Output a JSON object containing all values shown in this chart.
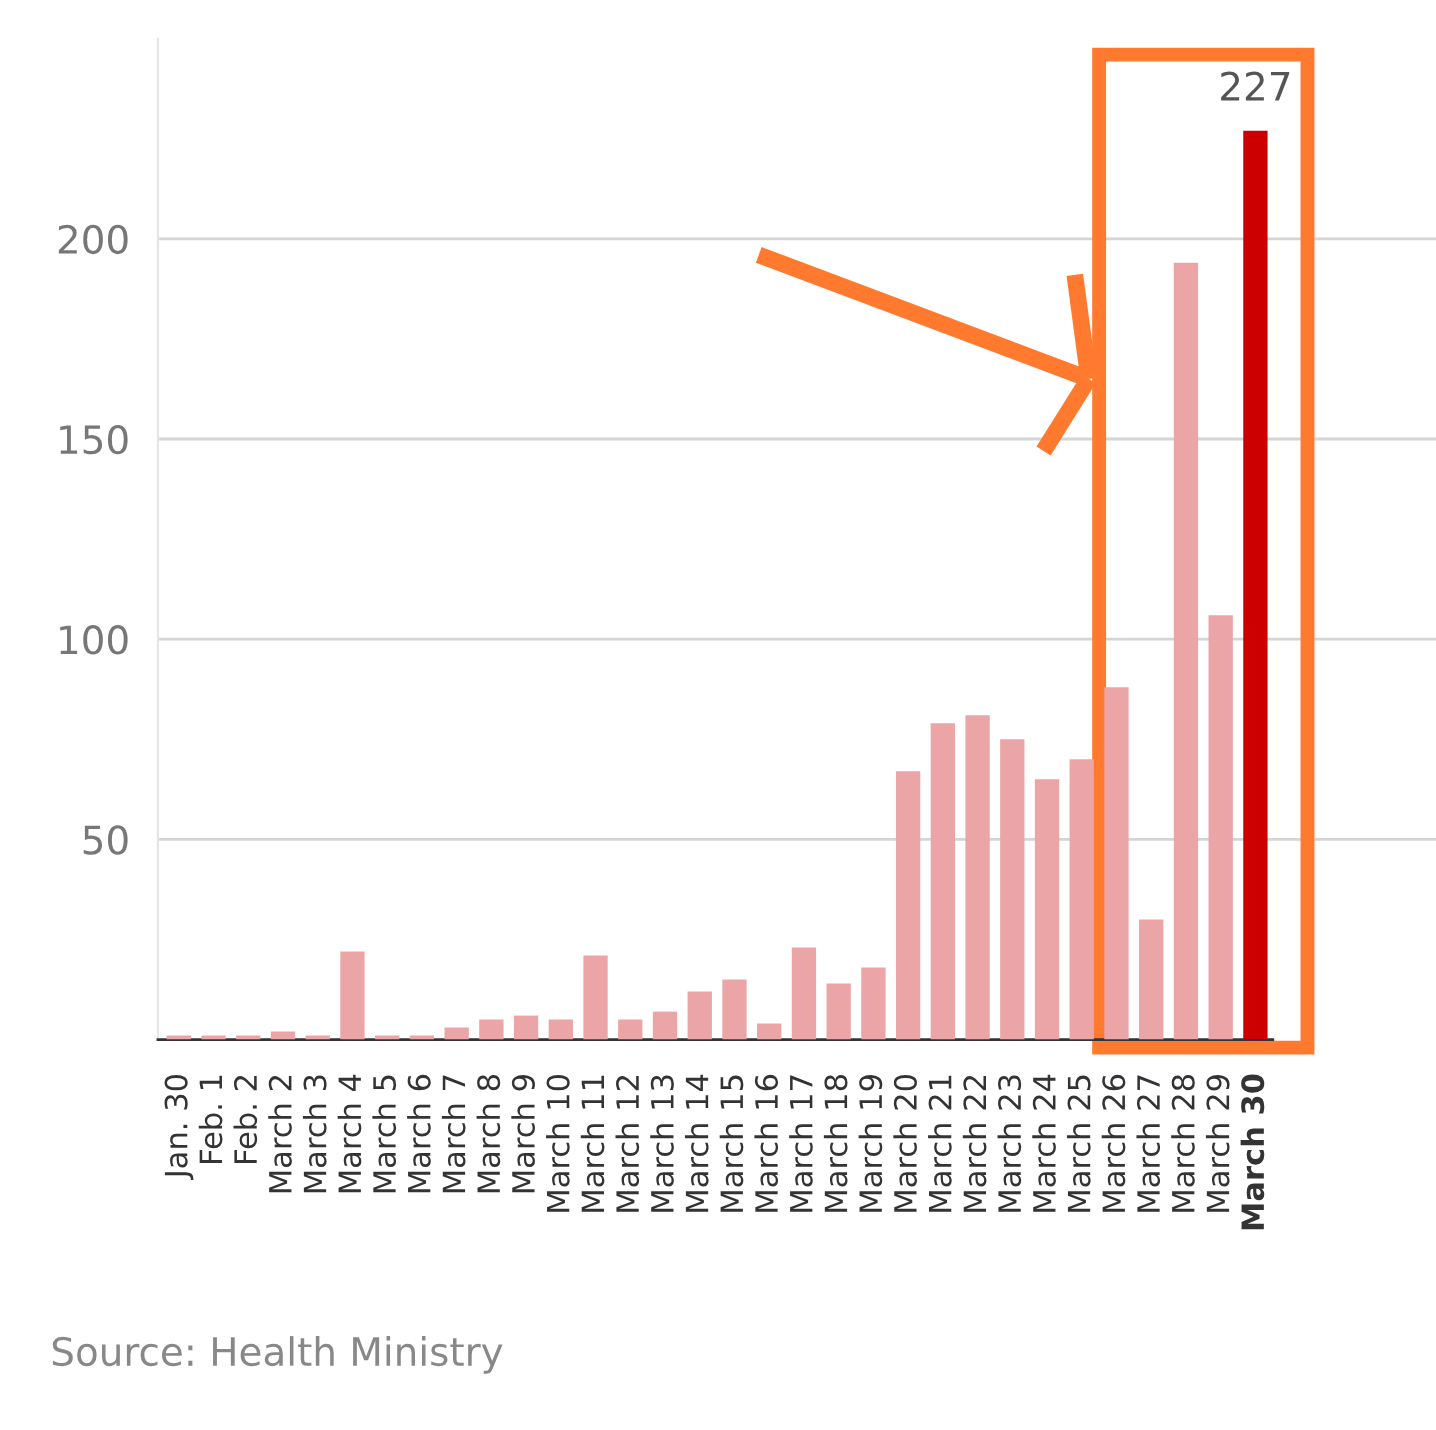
{
  "chart_data": {
    "type": "bar",
    "categories": [
      "Jan. 30",
      "Feb. 1",
      "Feb. 2",
      "March 2",
      "March 3",
      "March 4",
      "March 5",
      "March 6",
      "March 7",
      "March 8",
      "March 9",
      "March 10",
      "March 11",
      "March 12",
      "March 13",
      "March 14",
      "March 15",
      "March 16",
      "March 17",
      "March 18",
      "March 19",
      "March 20",
      "March 21",
      "March 22",
      "March 23",
      "March 24",
      "March 25",
      "March 26",
      "March 27",
      "March 28",
      "March 29",
      "March 30"
    ],
    "values": [
      1,
      1,
      1,
      2,
      1,
      22,
      1,
      1,
      3,
      5,
      6,
      5,
      21,
      5,
      7,
      12,
      15,
      4,
      23,
      14,
      18,
      67,
      79,
      81,
      75,
      65,
      70,
      88,
      30,
      194,
      106,
      227
    ],
    "colors": [
      "#eba5a7",
      "#eba5a7",
      "#eba5a7",
      "#eba5a7",
      "#eba5a7",
      "#eba5a7",
      "#eba5a7",
      "#eba5a7",
      "#eba5a7",
      "#eba5a7",
      "#eba5a7",
      "#eba5a7",
      "#eba5a7",
      "#eba5a7",
      "#eba5a7",
      "#eba5a7",
      "#eba5a7",
      "#eba5a7",
      "#eba5a7",
      "#eba5a7",
      "#eba5a7",
      "#eba5a7",
      "#eba5a7",
      "#eba5a7",
      "#eba5a7",
      "#eba5a7",
      "#eba5a7",
      "#eba5a7",
      "#eba5a7",
      "#eba5a7",
      "#eba5a7",
      "#cc0000"
    ],
    "value_labels": [
      null,
      null,
      null,
      null,
      null,
      null,
      null,
      null,
      null,
      null,
      null,
      null,
      null,
      null,
      null,
      null,
      null,
      null,
      null,
      null,
      null,
      null,
      null,
      null,
      null,
      null,
      null,
      null,
      null,
      null,
      null,
      "227"
    ],
    "ylim": [
      0,
      250
    ],
    "yticks": [
      50,
      100,
      150,
      200
    ],
    "grid": "y",
    "legend": false,
    "annotations": [
      "Source: Health Ministry"
    ]
  }
}
